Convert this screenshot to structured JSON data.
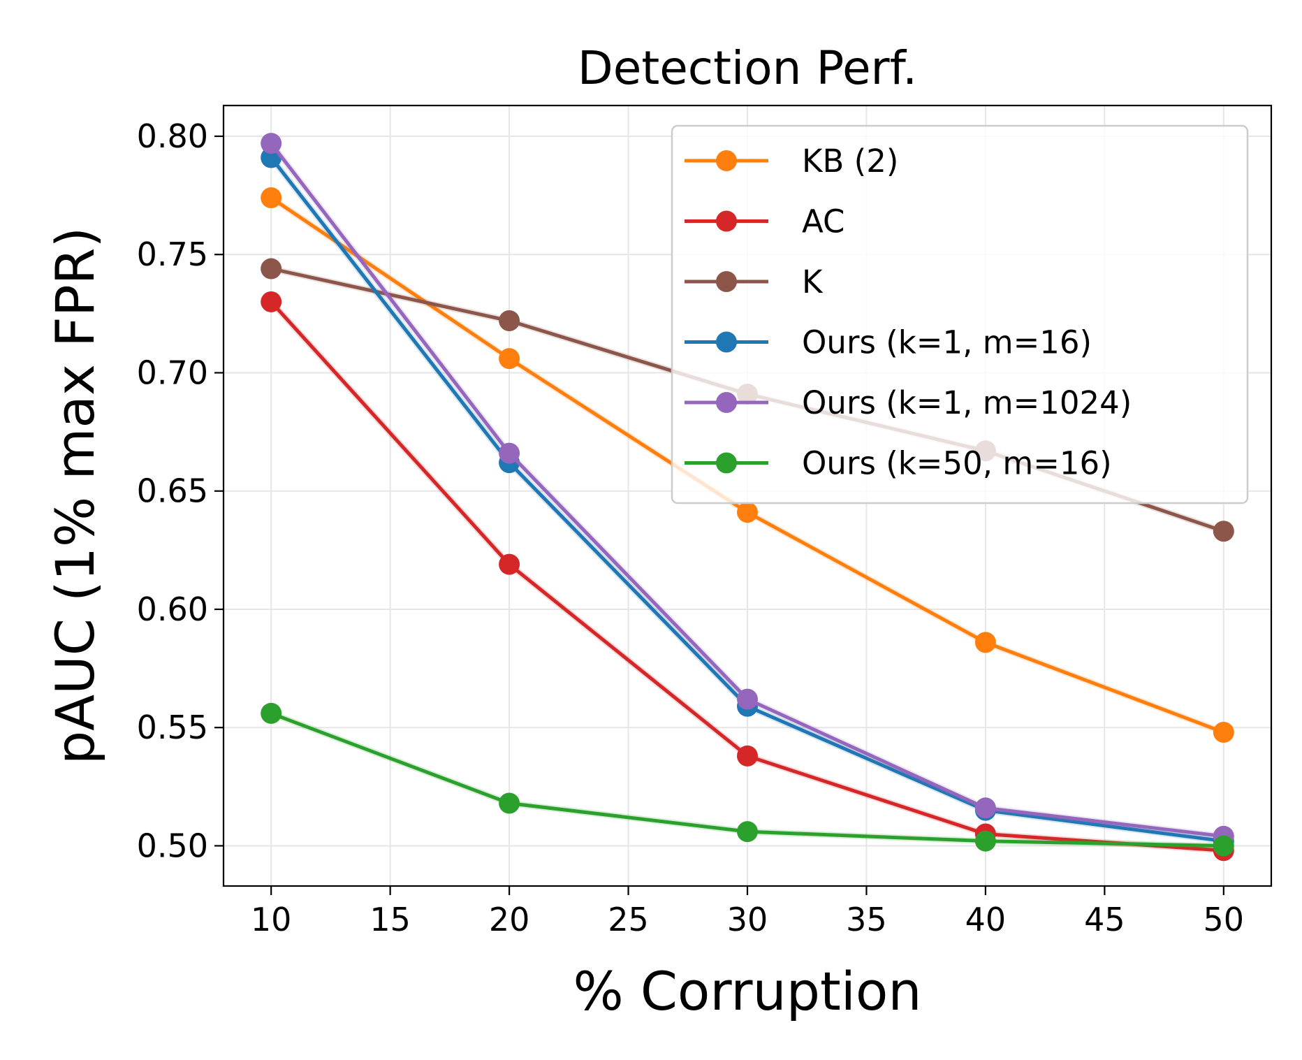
{
  "chart_data": {
    "type": "line",
    "title": "Detection Perf.",
    "xlabel": "% Corruption",
    "ylabel": "pAUC (1% max FPR)",
    "xlim": [
      8,
      52
    ],
    "ylim": [
      0.483,
      0.813
    ],
    "xticks": [
      10,
      15,
      20,
      25,
      30,
      35,
      40,
      45,
      50
    ],
    "xtick_labels": [
      "10",
      "15",
      "20",
      "25",
      "30",
      "35",
      "40",
      "45",
      "50"
    ],
    "yticks": [
      0.5,
      0.55,
      0.6,
      0.65,
      0.7,
      0.75,
      0.8
    ],
    "ytick_labels": [
      "0.50",
      "0.55",
      "0.60",
      "0.65",
      "0.70",
      "0.75",
      "0.80"
    ],
    "grid": true,
    "legend_position": "top-right",
    "x": [
      10,
      20,
      30,
      40,
      50
    ],
    "series": [
      {
        "name": "KB (2)",
        "color": "#ff7f0e",
        "values": [
          0.774,
          0.706,
          0.641,
          0.586,
          0.548
        ]
      },
      {
        "name": "AC",
        "color": "#d62728",
        "values": [
          0.73,
          0.619,
          0.538,
          0.505,
          0.498
        ]
      },
      {
        "name": "K",
        "color": "#8c564b",
        "values": [
          0.744,
          0.722,
          0.691,
          0.667,
          0.633
        ]
      },
      {
        "name": "Ours (k=1, m=16)",
        "color": "#1f77b4",
        "values": [
          0.791,
          0.662,
          0.559,
          0.515,
          0.502
        ]
      },
      {
        "name": "Ours (k=1, m=1024)",
        "color": "#9467bd",
        "values": [
          0.797,
          0.666,
          0.562,
          0.516,
          0.504
        ]
      },
      {
        "name": "Ours (k=50, m=16)",
        "color": "#2ca02c",
        "values": [
          0.556,
          0.518,
          0.506,
          0.502,
          0.5
        ]
      }
    ]
  }
}
